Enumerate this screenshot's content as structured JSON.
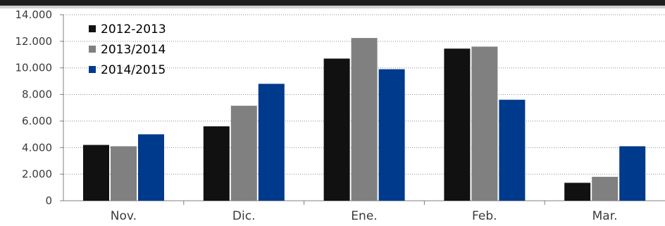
{
  "chart_data": {
    "type": "bar",
    "title": "",
    "xlabel": "",
    "ylabel": "",
    "categories": [
      "Nov.",
      "Dic.",
      "Ene.",
      "Feb.",
      "Mar."
    ],
    "series": [
      {
        "name": "2012-2013",
        "values": [
          4200,
          5600,
          10700,
          11450,
          1350
        ],
        "color": "#111111"
      },
      {
        "name": "2013/2014",
        "values": [
          4100,
          7150,
          12250,
          11600,
          1800
        ],
        "color": "#808080"
      },
      {
        "name": "2014/2015",
        "values": [
          5000,
          8800,
          9900,
          7600,
          4100
        ],
        "color": "#003a8c"
      }
    ],
    "ylim": [
      0,
      14000
    ],
    "yticks": [
      0,
      2000,
      4000,
      6000,
      8000,
      10000,
      12000,
      14000
    ],
    "ytick_labels": [
      "0",
      "2.000",
      "4.000",
      "6.000",
      "8.000",
      "10.000",
      "12.000",
      "14.000"
    ],
    "grid": true,
    "legend_position": "top-left"
  }
}
